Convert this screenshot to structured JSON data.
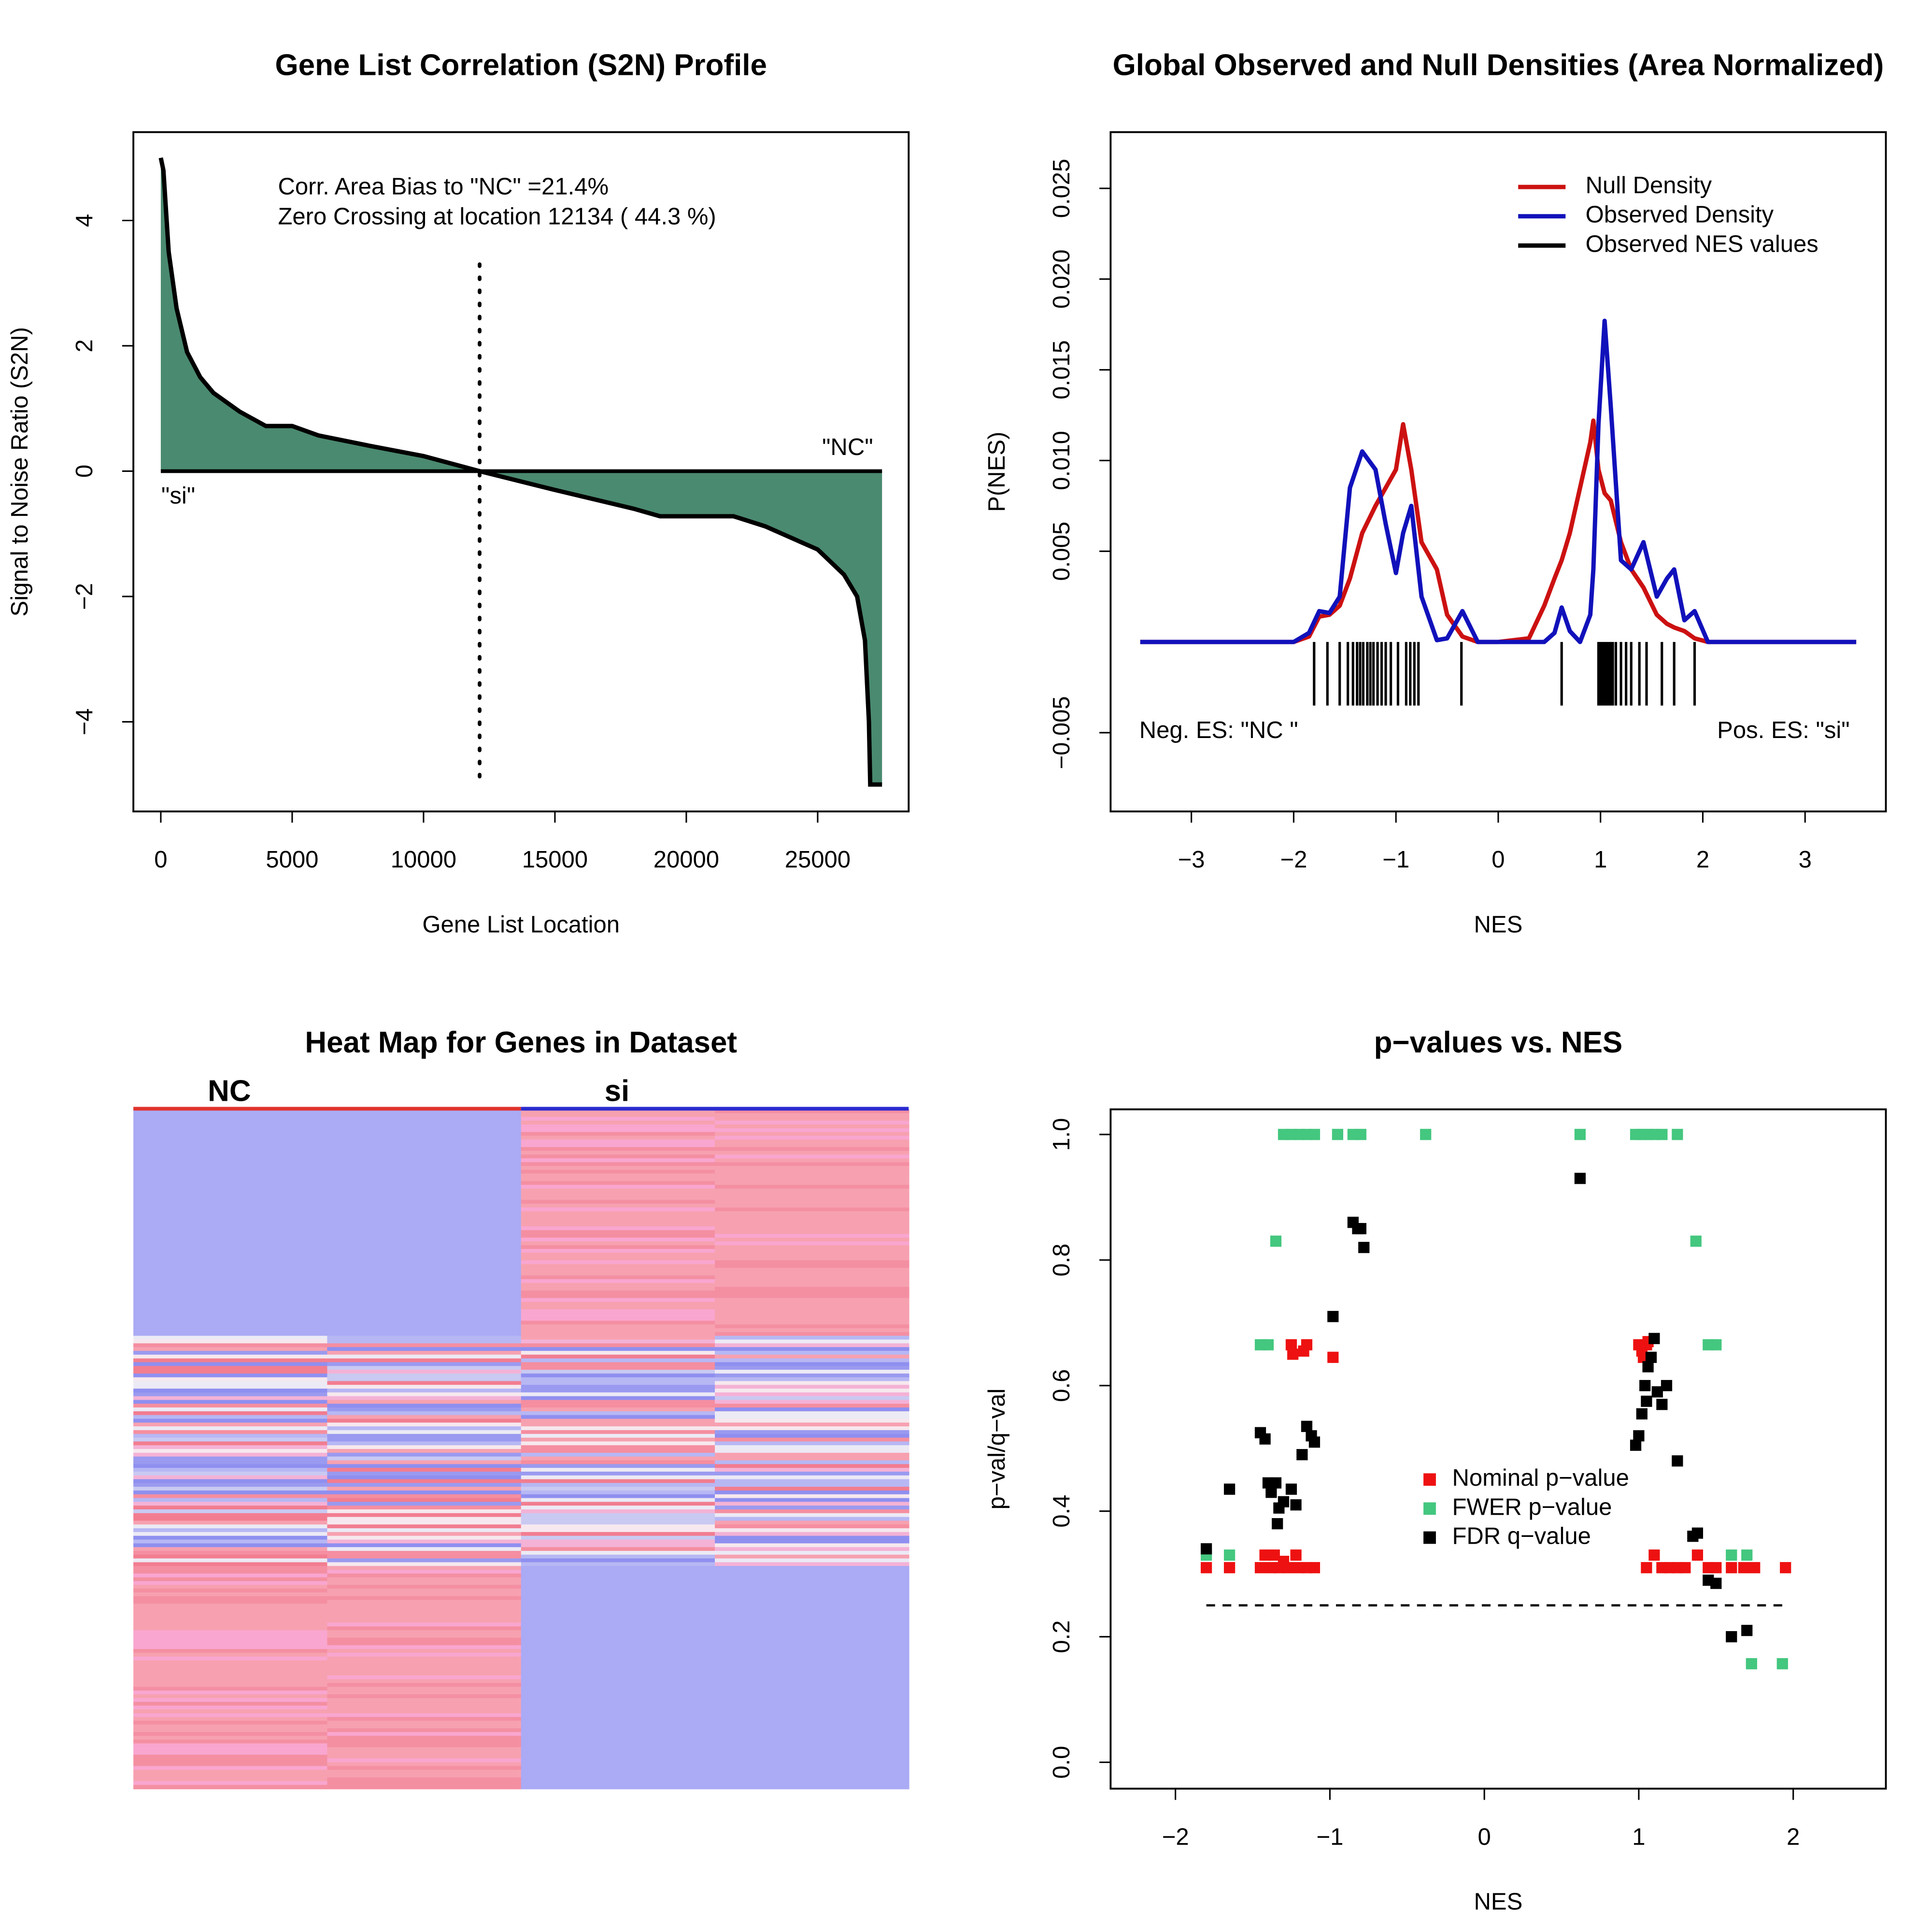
{
  "chart_data": [
    {
      "type": "area",
      "title": "Gene List Correlation (S2N) Profile",
      "x_label": "Gene List Location",
      "y_label": "Signal to Noise Ratio (S2N)",
      "annotations": [
        "Corr. Area Bias to \"NC\" =21.4%",
        "Zero Crossing at location  12134  ( 44.3  %)",
        "\"NC\"",
        "\"si\""
      ],
      "zero_crossing": 12134,
      "color": "#4a8a70",
      "line_color": "#000000",
      "x": [
        0,
        100,
        300,
        600,
        1000,
        1500,
        2000,
        3000,
        4000,
        5000,
        6000,
        8000,
        10000,
        12134,
        15000,
        18000,
        19000,
        20000,
        21800,
        23000,
        25000,
        26000,
        26500,
        26800,
        26950,
        27000,
        27200,
        27450
      ],
      "values": [
        5,
        4.8,
        3.5,
        2.6,
        1.9,
        1.5,
        1.25,
        0.95,
        0.72,
        0.72,
        0.57,
        0.4,
        0.24,
        0,
        -0.3,
        -0.6,
        -0.72,
        -0.72,
        -0.72,
        -0.88,
        -1.25,
        -1.65,
        -2.0,
        -2.7,
        -4.0,
        -5.0,
        -5.0,
        -5.0
      ],
      "xlim": [
        -1044,
        28463
      ],
      "ylim": [
        -5.43,
        5.41
      ],
      "xticks": [
        0,
        5000,
        10000,
        15000,
        20000,
        25000
      ],
      "yticks": [
        {
          "value": -4,
          "label": "−4"
        },
        {
          "value": -2,
          "label": "−2"
        },
        0,
        2,
        4
      ]
    },
    {
      "type": "line",
      "title": "Global Observed and Null Densities (Area Normalized)",
      "x_label": "NES",
      "y_label": "P(NES)",
      "annotations": [
        "Neg. ES: \"NC \"",
        "Pos. ES: \"si\""
      ],
      "legend": "topright",
      "x": [
        -3.5,
        -2.0,
        -1.85,
        -1.75,
        -1.65,
        -1.55,
        -1.45,
        -1.33,
        -1.2,
        -1.1,
        -1.0,
        -0.93,
        -0.85,
        -0.75,
        -0.6,
        -0.5,
        -0.35,
        -0.2,
        0,
        0.3,
        0.45,
        0.55,
        0.62,
        0.7,
        0.8,
        0.9,
        0.93,
        0.98,
        1.04,
        1.1,
        1.2,
        1.3,
        1.42,
        1.55,
        1.65,
        1.72,
        1.82,
        1.92,
        2.05,
        2.3,
        3.5
      ],
      "series": [
        {
          "name": "Null Density",
          "color": "#cc1111",
          "values": [
            0,
            0,
            0.0003,
            0.0014,
            0.0015,
            0.002,
            0.0035,
            0.006,
            0.0075,
            0.0085,
            0.0095,
            0.012,
            0.0095,
            0.0055,
            0.004,
            0.0015,
            0.0003,
            0,
            0,
            0.0002,
            0.002,
            0.0035,
            0.0045,
            0.006,
            0.0085,
            0.011,
            0.0122,
            0.0095,
            0.0082,
            0.0078,
            0.0055,
            0.004,
            0.003,
            0.0015,
            0.001,
            0.0008,
            0.0006,
            0.0002,
            0,
            0,
            0
          ]
        },
        {
          "name": "Observed Density",
          "color": "#1111bb",
          "values": [
            0,
            0,
            0.0005,
            0.0017,
            0.0016,
            0.0025,
            0.0085,
            0.0105,
            0.0095,
            0.0065,
            0.0038,
            0.006,
            0.0075,
            0.0025,
            0.0001,
            0.0002,
            0.0017,
            0,
            0,
            0,
            0,
            0.0005,
            0.0019,
            0.0006,
            0,
            0.0015,
            0.004,
            0.012,
            0.0177,
            0.013,
            0.0045,
            0.004,
            0.0055,
            0.0025,
            0.0035,
            0.004,
            0.0012,
            0.0017,
            0,
            0,
            0
          ]
        }
      ],
      "rug": {
        "name": "Observed NES values",
        "color": "#000000",
        "values": [
          -1.8,
          -1.67,
          -1.55,
          -1.47,
          -1.42,
          -1.38,
          -1.35,
          -1.32,
          -1.28,
          -1.25,
          -1.22,
          -1.18,
          -1.14,
          -1.1,
          -1.05,
          -0.98,
          -0.9,
          -0.86,
          -0.82,
          -0.78,
          -0.36,
          0.62,
          0.98,
          1.0,
          1.02,
          1.04,
          1.06,
          1.08,
          1.1,
          1.12,
          1.15,
          1.2,
          1.25,
          1.3,
          1.38,
          1.45,
          1.6,
          1.72,
          1.92
        ]
      },
      "xlim": [
        -3.79,
        3.79
      ],
      "ylim": [
        -0.00934,
        0.0281
      ],
      "xticks": [
        {
          "value": -3,
          "label": "−3"
        },
        {
          "value": -2,
          "label": "−2"
        },
        {
          "value": -1,
          "label": "−1"
        },
        0,
        1,
        2,
        3
      ],
      "yticks": [
        {
          "value": -0.005,
          "label": "−0.005"
        },
        0.005,
        {
          "value": 0.01,
          "label": "0.010"
        },
        0.015,
        {
          "value": 0.02,
          "label": "0.020"
        },
        0.025
      ]
    },
    {
      "type": "heatmap",
      "title": "Heat Map for Genes in Dataset",
      "column_groups": [
        "NC",
        "si"
      ],
      "group_colors": [
        "#e0342f",
        "#2b2bd0"
      ]
    },
    {
      "type": "scatter",
      "title": "p−values vs. NES",
      "x_label": "NES",
      "y_label": "p−val/q−val",
      "legend": "center",
      "hline": 0.25,
      "series": [
        {
          "name": "Nominal p−value",
          "color": "#ee1111",
          "x": [
            -1.8,
            -1.65,
            -1.45,
            -1.42,
            -1.38,
            -1.36,
            -1.33,
            -1.3,
            -1.27,
            -1.22,
            -1.2,
            -1.15,
            -1.1,
            -1.25,
            -1.24,
            -1.17,
            -1.15,
            -0.98,
            1.0,
            1.02,
            1.05,
            1.03,
            1.06,
            1.05,
            1.1,
            1.15,
            1.2,
            1.25,
            1.3,
            1.38,
            1.45,
            1.5,
            1.6,
            1.68,
            1.75,
            1.95
          ],
          "values": [
            0.31,
            0.31,
            0.31,
            0.33,
            0.31,
            0.33,
            0.31,
            0.32,
            0.31,
            0.33,
            0.31,
            0.31,
            0.31,
            0.665,
            0.65,
            0.655,
            0.665,
            0.645,
            0.665,
            0.655,
            0.665,
            0.645,
            0.67,
            0.31,
            0.33,
            0.31,
            0.31,
            0.31,
            0.31,
            0.33,
            0.31,
            0.31,
            0.31,
            0.31,
            0.31,
            0.31
          ]
        },
        {
          "name": "FWER p−value",
          "color": "#44c77f",
          "x": [
            -1.8,
            -1.65,
            -1.45,
            -1.4,
            -1.35,
            -1.3,
            -1.25,
            -1.2,
            -1.15,
            -1.1,
            -0.95,
            -0.85,
            -0.8,
            -0.38,
            0.62,
            0.98,
            1.02,
            1.06,
            1.1,
            1.15,
            1.25,
            1.37,
            1.45,
            1.5,
            1.6,
            1.7,
            1.73,
            1.93
          ],
          "values": [
            0.33,
            0.33,
            0.665,
            0.665,
            0.83,
            1.0,
            1.0,
            1.0,
            1.0,
            1.0,
            1.0,
            1.0,
            1.0,
            1.0,
            1.0,
            1.0,
            1.0,
            1.0,
            1.0,
            1.0,
            1.0,
            0.83,
            0.665,
            0.665,
            0.33,
            0.33,
            0.157,
            0.157
          ]
        },
        {
          "name": "FDR q−value",
          "color": "#000000",
          "x": [
            -1.8,
            -1.65,
            -1.45,
            -1.42,
            -1.4,
            -1.38,
            -1.35,
            -1.34,
            -1.33,
            -1.3,
            -1.25,
            -1.22,
            -1.18,
            -1.15,
            -1.12,
            -1.1,
            -0.98,
            -0.85,
            -0.82,
            -0.78,
            -0.8,
            0.62,
            0.98,
            1.0,
            1.02,
            1.04,
            1.05,
            1.06,
            1.08,
            1.1,
            1.12,
            1.15,
            1.18,
            1.25,
            1.35,
            1.38,
            1.45,
            1.5,
            1.6,
            1.7
          ],
          "values": [
            0.34,
            0.435,
            0.525,
            0.515,
            0.445,
            0.43,
            0.445,
            0.38,
            0.405,
            0.415,
            0.435,
            0.41,
            0.49,
            0.535,
            0.52,
            0.51,
            0.71,
            0.86,
            0.85,
            0.82,
            0.85,
            0.93,
            0.505,
            0.52,
            0.555,
            0.6,
            0.575,
            0.63,
            0.645,
            0.675,
            0.59,
            0.57,
            0.6,
            0.48,
            0.36,
            0.365,
            0.29,
            0.285,
            0.2,
            0.21
          ]
        }
      ],
      "xlim": [
        -2.42,
        2.6
      ],
      "ylim": [
        -0.042,
        1.04
      ],
      "xticks": [
        {
          "value": -2,
          "label": "−2"
        },
        {
          "value": -1,
          "label": "−1"
        },
        0,
        1,
        2
      ],
      "yticks": [
        {
          "value": 0,
          "label": "0.0"
        },
        0.2,
        0.4,
        0.6,
        0.8,
        {
          "value": 1,
          "label": "1.0"
        }
      ]
    }
  ]
}
